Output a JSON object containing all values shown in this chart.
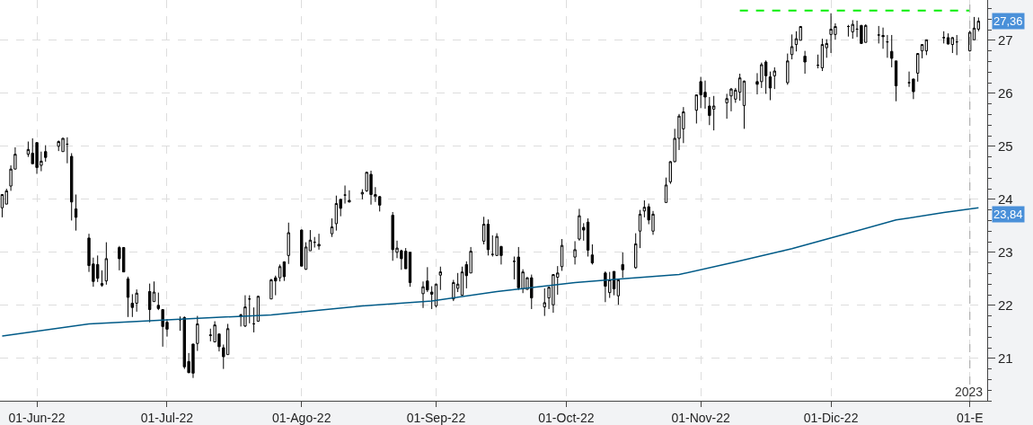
{
  "chart_data": {
    "type": "candlestick",
    "x": [
      "2022-05-24",
      "2022-05-25",
      "2022-05-26",
      "2022-05-27",
      "2022-05-30",
      "2022-05-31",
      "2022-06-01",
      "2022-06-02",
      "2022-06-03",
      "2022-06-06",
      "2022-06-07",
      "2022-06-08",
      "2022-06-09",
      "2022-06-10",
      "2022-06-13",
      "2022-06-14",
      "2022-06-15",
      "2022-06-16",
      "2022-06-17",
      "2022-06-20",
      "2022-06-21",
      "2022-06-22",
      "2022-06-23",
      "2022-06-24",
      "2022-06-27",
      "2022-06-28",
      "2022-06-29",
      "2022-06-30",
      "2022-07-01",
      "2022-07-04",
      "2022-07-05",
      "2022-07-06",
      "2022-07-07",
      "2022-07-08",
      "2022-07-11",
      "2022-07-12",
      "2022-07-13",
      "2022-07-14",
      "2022-07-15",
      "2022-07-18",
      "2022-07-19",
      "2022-07-20",
      "2022-07-21",
      "2022-07-22",
      "2022-07-25",
      "2022-07-26",
      "2022-07-27",
      "2022-07-28",
      "2022-07-29",
      "2022-08-01",
      "2022-08-02",
      "2022-08-03",
      "2022-08-04",
      "2022-08-05",
      "2022-08-08",
      "2022-08-09",
      "2022-08-10",
      "2022-08-11",
      "2022-08-12",
      "2022-08-15",
      "2022-08-16",
      "2022-08-17",
      "2022-08-18",
      "2022-08-19",
      "2022-08-22",
      "2022-08-23",
      "2022-08-24",
      "2022-08-25",
      "2022-08-26",
      "2022-08-29",
      "2022-08-30",
      "2022-08-31",
      "2022-09-01",
      "2022-09-02",
      "2022-09-05",
      "2022-09-06",
      "2022-09-07",
      "2022-09-08",
      "2022-09-09",
      "2022-09-12",
      "2022-09-13",
      "2022-09-14",
      "2022-09-15",
      "2022-09-16",
      "2022-09-19",
      "2022-09-20",
      "2022-09-21",
      "2022-09-22",
      "2022-09-23",
      "2022-09-26",
      "2022-09-27",
      "2022-09-28",
      "2022-09-29",
      "2022-09-30",
      "2022-10-03",
      "2022-10-04",
      "2022-10-05",
      "2022-10-06",
      "2022-10-07",
      "2022-10-10",
      "2022-10-11",
      "2022-10-12",
      "2022-10-13",
      "2022-10-14",
      "2022-10-17",
      "2022-10-18",
      "2022-10-19",
      "2022-10-20",
      "2022-10-21",
      "2022-10-24",
      "2022-10-25",
      "2022-10-26",
      "2022-10-27",
      "2022-10-28",
      "2022-10-31",
      "2022-11-01",
      "2022-11-02",
      "2022-11-03",
      "2022-11-04",
      "2022-11-07",
      "2022-11-08",
      "2022-11-09",
      "2022-11-10",
      "2022-11-11",
      "2022-11-14",
      "2022-11-15",
      "2022-11-16",
      "2022-11-17",
      "2022-11-18",
      "2022-11-21",
      "2022-11-22",
      "2022-11-23",
      "2022-11-24",
      "2022-11-25",
      "2022-11-28",
      "2022-11-29",
      "2022-11-30",
      "2022-12-01",
      "2022-12-02",
      "2022-12-05",
      "2022-12-06",
      "2022-12-07",
      "2022-12-08",
      "2022-12-09",
      "2022-12-12",
      "2022-12-13",
      "2022-12-14",
      "2022-12-15",
      "2022-12-16",
      "2022-12-19",
      "2022-12-20",
      "2022-12-21",
      "2022-12-22",
      "2022-12-23",
      "2022-12-27",
      "2022-12-28",
      "2022-12-29",
      "2022-12-30",
      "2023-01-02",
      "2023-01-03",
      "2023-01-04"
    ],
    "series": [
      {
        "color": "#000000",
        "ohlc": [
          [
            23.84,
            24.09,
            23.66,
            24.09
          ],
          [
            23.91,
            24.2,
            23.91,
            24.16
          ],
          [
            24.25,
            24.64,
            24.16,
            24.57
          ],
          [
            24.57,
            24.98,
            24.57,
            24.85
          ],
          [
            24.85,
            25.09,
            24.8,
            24.94
          ],
          [
            24.87,
            25.15,
            24.67,
            24.67
          ],
          [
            25.07,
            25.07,
            24.48,
            24.6
          ],
          [
            24.64,
            24.9,
            24.53,
            24.72
          ],
          [
            24.9,
            25.02,
            24.71,
            24.79
          ],
          [
            25.0,
            25.11,
            24.91,
            25.09
          ],
          [
            24.9,
            25.16,
            24.9,
            25.15
          ],
          [
            25.04,
            25.17,
            24.68,
            25.04
          ],
          [
            24.81,
            24.87,
            23.6,
            23.95
          ],
          [
            23.82,
            24.09,
            23.41,
            23.66
          ],
          [
            23.27,
            23.35,
            22.63,
            22.75
          ],
          [
            22.78,
            22.9,
            22.35,
            22.45
          ],
          [
            22.77,
            22.94,
            22.44,
            22.51
          ],
          [
            22.41,
            22.66,
            22.35,
            22.38
          ],
          [
            22.46,
            23.19,
            22.39,
            22.88
          ],
          [
            23.09,
            23.12,
            22.66,
            22.88
          ],
          [
            23.09,
            23.1,
            22.63,
            22.63
          ],
          [
            22.5,
            22.54,
            21.78,
            22.15
          ],
          [
            22.04,
            22.21,
            21.78,
            21.96
          ],
          [
            22.04,
            22.3,
            21.88,
            22.23
          ],
          [
            22.26,
            22.41,
            21.68,
            21.92
          ],
          [
            22.07,
            22.45,
            22.07,
            22.25
          ],
          [
            22.0,
            22.24,
            21.91,
            21.94
          ],
          [
            21.92,
            21.92,
            21.22,
            21.6
          ],
          [
            21.68,
            21.74,
            21.41,
            21.55
          ],
          [
            21.73,
            21.79,
            21.52,
            21.73
          ],
          [
            21.77,
            21.79,
            20.8,
            20.84
          ],
          [
            20.94,
            21.1,
            20.72,
            20.73
          ],
          [
            21.27,
            21.27,
            20.63,
            20.72
          ],
          [
            21.28,
            21.8,
            21.14,
            21.65
          ],
          [
            21.43,
            21.56,
            21.32,
            21.44
          ],
          [
            21.31,
            21.7,
            21.31,
            21.63
          ],
          [
            21.46,
            21.46,
            21.13,
            21.22
          ],
          [
            21.2,
            21.26,
            20.8,
            21.03
          ],
          [
            21.07,
            21.65,
            21.07,
            21.56
          ],
          [
            21.82,
            21.84,
            21.6,
            21.79
          ],
          [
            21.61,
            22.19,
            21.59,
            21.97
          ],
          [
            22.12,
            22.19,
            21.66,
            22.12
          ],
          [
            21.65,
            21.96,
            21.49,
            21.65
          ],
          [
            21.7,
            22.18,
            21.7,
            22.17
          ],
          [
            22.12,
            22.5,
            22.12,
            22.48
          ],
          [
            22.52,
            22.56,
            22.19,
            22.46
          ],
          [
            22.52,
            22.77,
            22.45,
            22.73
          ],
          [
            22.82,
            22.83,
            22.46,
            22.54
          ],
          [
            22.94,
            23.56,
            22.78,
            23.37
          ],
          [
            23.42,
            23.43,
            22.74,
            22.74
          ],
          [
            22.68,
            23.19,
            22.67,
            23.1
          ],
          [
            23.03,
            23.42,
            23.03,
            23.23
          ],
          [
            23.19,
            23.29,
            23.09,
            23.19
          ],
          [
            23.12,
            23.35,
            23.05,
            23.15
          ],
          [
            23.35,
            23.64,
            23.29,
            23.48
          ],
          [
            23.54,
            24.07,
            23.41,
            23.92
          ],
          [
            24.0,
            24.0,
            23.68,
            23.83
          ],
          [
            24.08,
            24.26,
            23.92,
            24.08
          ],
          [
            23.95,
            24.17,
            23.94,
            23.98
          ],
          [
            24.1,
            24.19,
            24.0,
            24.13
          ],
          [
            24.16,
            24.52,
            24.14,
            24.51
          ],
          [
            24.47,
            24.54,
            23.9,
            24.09
          ],
          [
            24.05,
            24.23,
            23.95,
            24.09
          ],
          [
            24.05,
            24.06,
            23.77,
            23.89
          ],
          [
            23.7,
            23.76,
            22.84,
            23.05
          ],
          [
            23.0,
            23.22,
            22.89,
            23.08
          ],
          [
            23.03,
            23.05,
            22.67,
            22.88
          ],
          [
            23.02,
            23.08,
            22.69,
            22.69
          ],
          [
            23.0,
            23.0,
            22.35,
            22.43
          ],
          [
            22.22,
            22.45,
            21.95,
            22.35
          ],
          [
            22.46,
            22.72,
            22.25,
            22.29
          ],
          [
            22.25,
            22.36,
            21.93,
            22.21
          ],
          [
            21.99,
            22.41,
            21.96,
            22.4
          ],
          [
            22.57,
            22.73,
            22.29,
            22.63
          ],
          [
            22.12,
            22.48,
            22.08,
            22.43
          ],
          [
            22.32,
            22.61,
            22.25,
            22.4
          ],
          [
            22.19,
            22.73,
            22.18,
            22.63
          ],
          [
            22.77,
            22.83,
            22.32,
            22.56
          ],
          [
            22.61,
            23.1,
            22.61,
            23.02
          ],
          [
            23.21,
            23.67,
            23.15,
            23.53
          ],
          [
            23.53,
            23.62,
            22.94,
            23.05
          ],
          [
            22.96,
            23.32,
            22.92,
            22.96
          ],
          [
            22.94,
            23.36,
            22.94,
            23.3
          ],
          [
            23.11,
            23.12,
            22.77,
            22.94
          ],
          [
            22.83,
            22.92,
            22.49,
            22.83
          ],
          [
            22.91,
            23.1,
            22.29,
            22.33
          ],
          [
            22.31,
            22.68,
            22.23,
            22.63
          ],
          [
            22.3,
            22.53,
            22.3,
            22.52
          ],
          [
            22.52,
            22.58,
            21.93,
            22.14
          ],
          [
            21.97,
            22.32,
            21.8,
            22.05
          ],
          [
            22.14,
            22.35,
            21.93,
            22.34
          ],
          [
            22.01,
            22.59,
            21.86,
            22.58
          ],
          [
            22.53,
            22.74,
            22.2,
            22.61
          ],
          [
            22.73,
            23.25,
            22.65,
            23.13
          ],
          [
            22.91,
            23.21,
            22.77,
            23.05
          ],
          [
            23.25,
            23.82,
            23.22,
            23.69
          ],
          [
            23.47,
            23.55,
            23.22,
            23.42
          ],
          [
            23.57,
            23.64,
            22.92,
            23.04
          ],
          [
            22.95,
            23.15,
            22.77,
            22.8
          ],
          [
            22.61,
            22.64,
            22.06,
            22.36
          ],
          [
            22.24,
            22.63,
            22.14,
            22.48
          ],
          [
            22.64,
            22.64,
            22.19,
            22.31
          ],
          [
            22.18,
            22.48,
            22.01,
            22.48
          ],
          [
            22.77,
            23.0,
            22.52,
            22.67
          ],
          [
            22.71,
            23.36,
            22.69,
            23.16
          ],
          [
            23.4,
            23.8,
            23.08,
            23.72
          ],
          [
            23.78,
            23.98,
            23.66,
            23.85
          ],
          [
            23.86,
            23.92,
            23.53,
            23.61
          ],
          [
            23.4,
            23.78,
            23.33,
            23.72
          ],
          [
            23.94,
            24.41,
            23.94,
            24.27
          ],
          [
            24.33,
            24.72,
            24.29,
            24.71
          ],
          [
            24.71,
            25.33,
            24.7,
            25.15
          ],
          [
            25.15,
            25.61,
            24.93,
            25.57
          ],
          [
            25.33,
            25.74,
            25.06,
            25.65
          ],
          [
            25.68,
            25.97,
            25.43,
            25.97
          ],
          [
            26.22,
            26.31,
            25.72,
            25.97
          ],
          [
            26.02,
            26.24,
            25.71,
            25.93
          ],
          [
            25.76,
            25.93,
            25.4,
            25.58
          ],
          [
            25.7,
            25.95,
            25.3,
            25.76
          ],
          [
            25.82,
            25.99,
            25.52,
            25.9
          ],
          [
            25.95,
            26.1,
            25.66,
            26.08
          ],
          [
            25.89,
            26.1,
            25.82,
            26.06
          ],
          [
            26.02,
            26.37,
            25.86,
            26.29
          ],
          [
            25.77,
            26.24,
            25.33,
            26.23
          ],
          [
            26.22,
            26.38,
            25.98,
            26.17
          ],
          [
            26.22,
            26.58,
            26.1,
            26.54
          ],
          [
            26.59,
            26.62,
            25.99,
            26.33
          ],
          [
            26.31,
            26.41,
            25.87,
            26.1
          ],
          [
            26.33,
            26.49,
            26.08,
            26.42
          ],
          [
            26.2,
            26.75,
            26.16,
            26.61
          ],
          [
            26.73,
            27.11,
            26.64,
            26.88
          ],
          [
            26.92,
            27.17,
            26.79,
            27.03
          ],
          [
            27.0,
            27.27,
            27.0,
            27.26
          ],
          [
            26.7,
            26.8,
            26.37,
            26.59
          ],
          [
            26.53,
            26.73,
            26.47,
            26.53
          ],
          [
            26.48,
            27.03,
            26.42,
            26.92
          ],
          [
            26.86,
            27.02,
            26.67,
            26.94
          ],
          [
            27.11,
            27.51,
            26.76,
            27.21
          ],
          [
            27.11,
            27.32,
            27.01,
            27.26
          ],
          [
            27.26,
            27.29,
            27.07,
            27.26
          ],
          [
            27.16,
            27.38,
            27.03,
            27.3
          ],
          [
            27.21,
            27.37,
            27.06,
            27.21
          ],
          [
            27.28,
            27.29,
            26.94,
            26.94
          ],
          [
            26.96,
            27.3,
            26.96,
            27.28
          ],
          [
            27.1,
            27.27,
            26.94,
            27.1
          ],
          [
            27.09,
            27.24,
            26.84,
            27.07
          ],
          [
            26.97,
            27.1,
            26.67,
            26.97
          ],
          [
            26.79,
            27.1,
            26.49,
            26.66
          ],
          [
            26.61,
            26.61,
            25.85,
            26.14
          ],
          [
            26.2,
            26.41,
            26.12,
            26.2
          ],
          [
            26.27,
            26.27,
            25.89,
            26.03
          ],
          [
            26.38,
            26.76,
            26.22,
            26.75
          ],
          [
            26.8,
            26.92,
            26.66,
            26.92
          ],
          [
            26.8,
            27.01,
            26.72,
            27.01
          ],
          [
            27.05,
            27.17,
            26.94,
            27.05
          ],
          [
            27.05,
            27.13,
            26.92,
            26.93
          ],
          [
            26.92,
            27.06,
            26.76,
            27.05
          ],
          [
            26.97,
            27.1,
            26.72,
            26.97
          ],
          [
            26.8,
            27.18,
            26.79,
            27.15
          ],
          [
            27.01,
            27.44,
            27.01,
            27.23
          ],
          [
            27.21,
            27.43,
            27.17,
            27.36
          ]
        ]
      },
      {
        "type": "line",
        "color": "#005a87",
        "x": [
          "2022-05-24",
          "2022-06-13",
          "2022-07-04",
          "2022-07-25",
          "2022-08-15",
          "2022-08-31",
          "2022-09-15",
          "2022-10-03",
          "2022-10-14",
          "2022-10-27",
          "2022-11-09",
          "2022-11-22",
          "2022-12-05",
          "2022-12-16",
          "2022-12-27",
          "2023-01-04"
        ],
        "values": [
          21.42,
          21.65,
          21.74,
          21.82,
          21.99,
          22.08,
          22.26,
          22.43,
          22.5,
          22.58,
          22.82,
          23.07,
          23.36,
          23.61,
          23.75,
          23.84
        ]
      },
      {
        "type": "line",
        "color": "#00ee00",
        "line_style": "dashed",
        "x": [
          "2022-11-10",
          "2023-01-02"
        ],
        "values": [
          27.56,
          27.56
        ]
      }
    ],
    "xlim": [
      "2022-05-23T12:00",
      "2023-01-06"
    ],
    "xticks": [
      {
        "value": "2022-06-01",
        "label": "01-Jun-22"
      },
      {
        "value": "2022-07-01",
        "label": "01-Jul-22"
      },
      {
        "value": "2022-08-01",
        "label": "01-Ago-22"
      },
      {
        "value": "2022-09-01",
        "label": "01-Sep-22"
      },
      {
        "value": "2022-10-01",
        "label": "01-Oct-22"
      },
      {
        "value": "2022-11-01",
        "label": "01-Nov-22"
      },
      {
        "value": "2022-12-01",
        "label": "01-Dic-22"
      },
      {
        "value": "2023-01-02",
        "label": "01-E"
      }
    ],
    "ylim": [
      20.2,
      27.76
    ],
    "yticks": [
      21,
      22,
      23,
      24,
      25,
      26,
      27
    ],
    "grid": true,
    "ref_lines": [
      {
        "axis": "x",
        "value": "2023-01-02",
        "color": "#b0b0b0",
        "line_style": "dashed"
      }
    ],
    "annotations": [
      {
        "text": "27,36",
        "x": "2023-01-04",
        "y": 27.36
      },
      {
        "text": "23,84",
        "x": "2023-01-04",
        "y": 23.84
      },
      "2023"
    ]
  }
}
